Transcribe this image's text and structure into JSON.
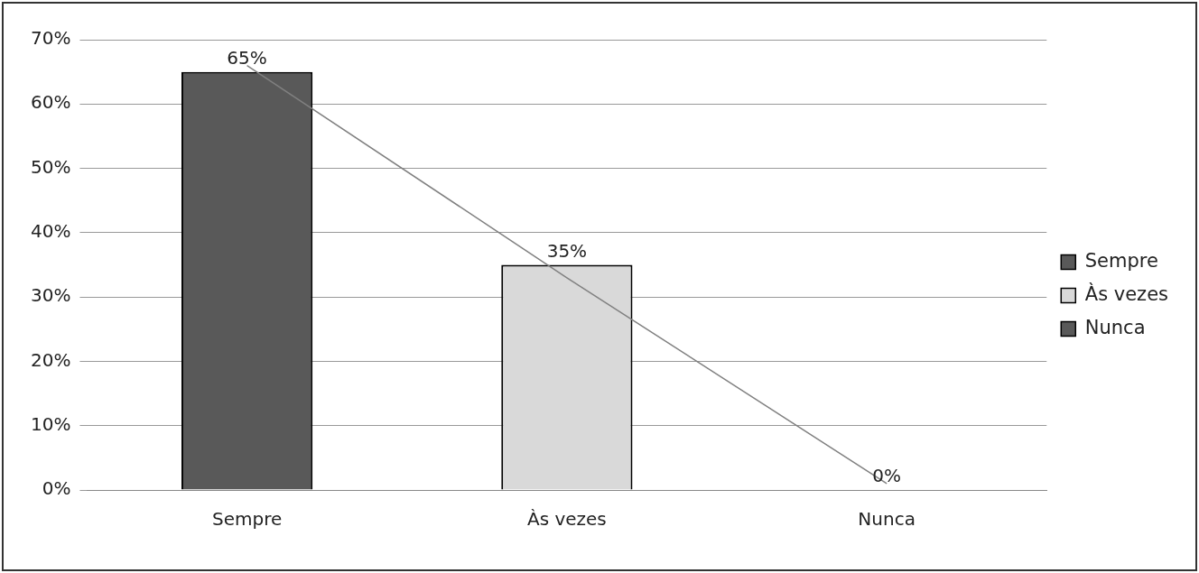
{
  "chart_data": {
    "type": "bar",
    "categories": [
      "Sempre",
      "Às vezes",
      "Nunca"
    ],
    "series": [
      {
        "name": "Sempre",
        "color": "#595959",
        "values": [
          65,
          null,
          null
        ],
        "value_labels": [
          "65%",
          null,
          null
        ]
      },
      {
        "name": "Às vezes",
        "color": "#d9d9d9",
        "values": [
          null,
          35,
          null
        ],
        "value_labels": [
          null,
          "35%",
          null
        ]
      },
      {
        "name": "Nunca",
        "color": "#595959",
        "values": [
          null,
          null,
          0
        ],
        "value_labels": [
          null,
          null,
          "0%"
        ]
      },
      {
        "type": "line",
        "color": "#808080",
        "values": [
          66,
          33,
          1
        ],
        "marker": "none"
      }
    ],
    "ylim": [
      0,
      70
    ],
    "yticks": [
      {
        "value": 0,
        "label": "0%"
      },
      {
        "value": 10,
        "label": "10%"
      },
      {
        "value": 20,
        "label": "20%"
      },
      {
        "value": 30,
        "label": "30%"
      },
      {
        "value": 40,
        "label": "40%"
      },
      {
        "value": 50,
        "label": "50%"
      },
      {
        "value": 60,
        "label": "60%"
      },
      {
        "value": 70,
        "label": "70%"
      }
    ],
    "grid": "y",
    "legend": "right"
  }
}
